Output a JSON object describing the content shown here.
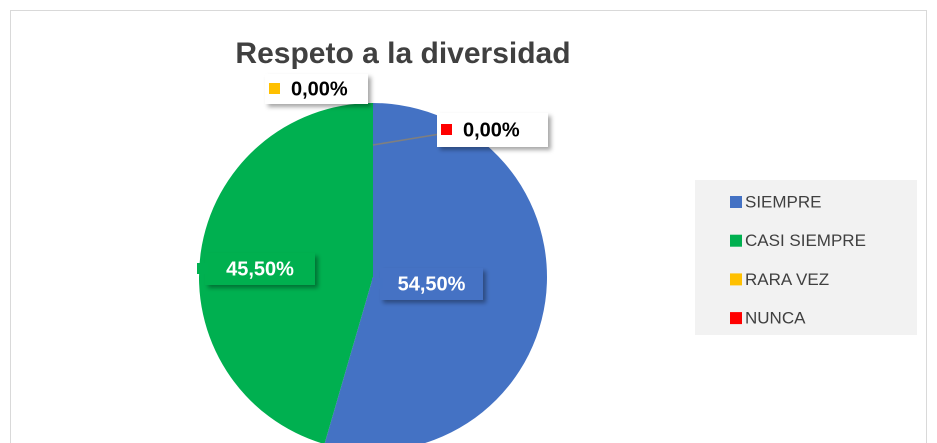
{
  "chart_data": {
    "type": "pie",
    "title": "Respeto a la diversidad",
    "categories": [
      "SIEMPRE",
      "CASI SIEMPRE",
      "RARA VEZ",
      "NUNCA"
    ],
    "values": [
      54.5,
      45.5,
      0,
      0
    ],
    "value_labels": [
      "54,50%",
      "45,50%",
      "0,00%",
      "0,00%"
    ],
    "colors": [
      "#4472c4",
      "#00b050",
      "#ffc000",
      "#ff0000"
    ],
    "legend": "right"
  }
}
